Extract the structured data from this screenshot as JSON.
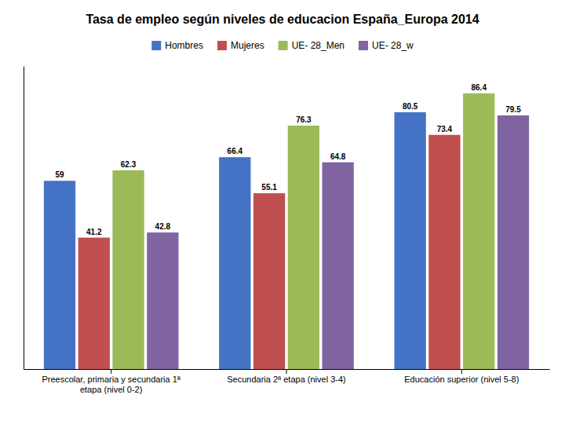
{
  "chart_data": {
    "type": "bar",
    "title": "Tasa de empleo según niveles de educacion España_Europa 2014",
    "categories": [
      "Preescolar, primaria y secundaria 1ª etapa (nivel 0-2)",
      "Secundaria 2ª etapa (nivel 3-4)",
      "Educación superior (nivel 5-8)"
    ],
    "series": [
      {
        "name": "Hombres",
        "color": "#4472C4",
        "values": [
          59,
          66.4,
          80.5
        ]
      },
      {
        "name": "Mujeres",
        "color": "#C0504D",
        "values": [
          41.2,
          55.1,
          73.4
        ]
      },
      {
        "name": "UE- 28_Men",
        "color": "#9BBB59",
        "values": [
          62.3,
          76.3,
          86.4
        ]
      },
      {
        "name": "UE- 28_w",
        "color": "#8064A2",
        "values": [
          42.8,
          64.8,
          79.5
        ]
      }
    ],
    "ylim": [
      0,
      95
    ],
    "grid": false,
    "legend": "top",
    "data_labels": true,
    "tick_labels": "x"
  }
}
